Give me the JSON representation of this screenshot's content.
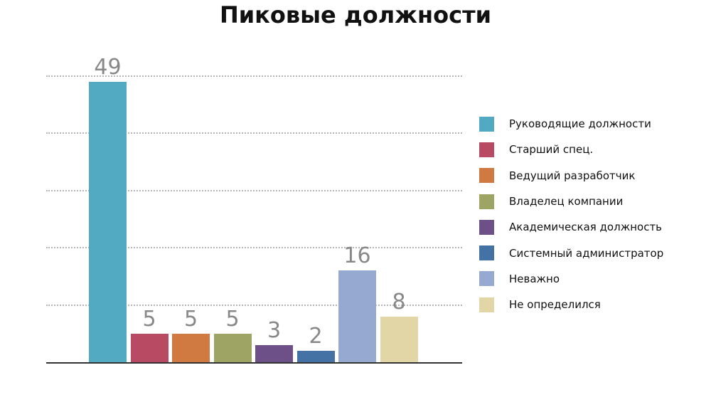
{
  "chart_data": {
    "type": "bar",
    "title": "Пиковые должности",
    "xlabel": "",
    "ylabel": "",
    "ylim": [
      0,
      50
    ],
    "grid": true,
    "gridlines": [
      10,
      20,
      30,
      40,
      50
    ],
    "legend_position": "right",
    "categories": [
      "Руководящие должности",
      "Старший спец.",
      "Ведущий разработчик",
      "Владелец компании",
      "Академическая должность",
      "Системный администратор",
      "Неважно",
      "Не определился"
    ],
    "values": [
      49,
      5,
      5,
      5,
      3,
      2,
      16,
      8
    ],
    "colors": [
      "#52a9c2",
      "#b84a63",
      "#d07a42",
      "#9ea464",
      "#6e5089",
      "#4472a5",
      "#95a9d1",
      "#e2d6a6"
    ],
    "data_labels": [
      "49",
      "5",
      "5",
      "5",
      "3",
      "2",
      "16",
      "8"
    ]
  }
}
